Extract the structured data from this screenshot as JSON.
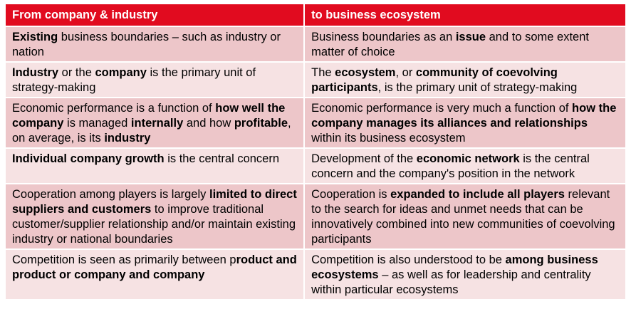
{
  "header": {
    "left": "From company & industry",
    "right": "to business ecosystem"
  },
  "rows": [
    {
      "left": [
        {
          "t": "Existing",
          "b": true
        },
        {
          "t": " business boundaries – such as industry or nation",
          "b": false
        }
      ],
      "right": [
        {
          "t": "Business boundaries as an ",
          "b": false
        },
        {
          "t": "issue",
          "b": true
        },
        {
          "t": " and to some extent matter of choice",
          "b": false
        }
      ]
    },
    {
      "left": [
        {
          "t": "Industry",
          "b": true
        },
        {
          "t": " or the ",
          "b": false
        },
        {
          "t": "company",
          "b": true
        },
        {
          "t": " is the primary unit of strategy-making",
          "b": false
        }
      ],
      "right": [
        {
          "t": "The ",
          "b": false
        },
        {
          "t": "ecosystem",
          "b": true
        },
        {
          "t": ", or ",
          "b": false
        },
        {
          "t": "community of coevolving participants",
          "b": true
        },
        {
          "t": ", is the primary unit of strategy-making",
          "b": false
        }
      ]
    },
    {
      "left": [
        {
          "t": "Economic performance is a function of ",
          "b": false
        },
        {
          "t": "how well the company",
          "b": true
        },
        {
          "t": " is managed ",
          "b": false
        },
        {
          "t": "internally",
          "b": true
        },
        {
          "t": " and how ",
          "b": false
        },
        {
          "t": "profitable",
          "b": true
        },
        {
          "t": ", on average, is its ",
          "b": false
        },
        {
          "t": "industry",
          "b": true
        }
      ],
      "right": [
        {
          "t": "Economic performance is very much a function of ",
          "b": false
        },
        {
          "t": "how the company manages its alliances and relationships",
          "b": true
        },
        {
          "t": " within its business ecosystem",
          "b": false
        }
      ]
    },
    {
      "left": [
        {
          "t": "Individual company growth",
          "b": true
        },
        {
          "t": " is the central concern",
          "b": false
        }
      ],
      "right": [
        {
          "t": "Development of the ",
          "b": false
        },
        {
          "t": "economic network",
          "b": true
        },
        {
          "t": " is the central concern and the company's position in the network",
          "b": false
        }
      ]
    },
    {
      "left": [
        {
          "t": "Cooperation among players is largely ",
          "b": false
        },
        {
          "t": "limited to direct suppliers and customers",
          "b": true
        },
        {
          "t": " to improve traditional customer/supplier relationship and/or maintain existing industry or national boundaries",
          "b": false
        }
      ],
      "right": [
        {
          "t": "Cooperation is ",
          "b": false
        },
        {
          "t": "expanded to include all players",
          "b": true
        },
        {
          "t": " relevant to the search for ideas and unmet needs that can be innovatively combined into new communities of coevolving participants",
          "b": false
        }
      ]
    },
    {
      "left": [
        {
          "t": "Competition is seen as primarily between p",
          "b": false
        },
        {
          "t": "roduct and product or company and company",
          "b": true
        }
      ],
      "right": [
        {
          "t": "Competition is also understood to be ",
          "b": false
        },
        {
          "t": "among business ecosystems",
          "b": true
        },
        {
          "t": " – as well as for leadership and centrality within particular ecosystems",
          "b": false
        }
      ]
    }
  ]
}
